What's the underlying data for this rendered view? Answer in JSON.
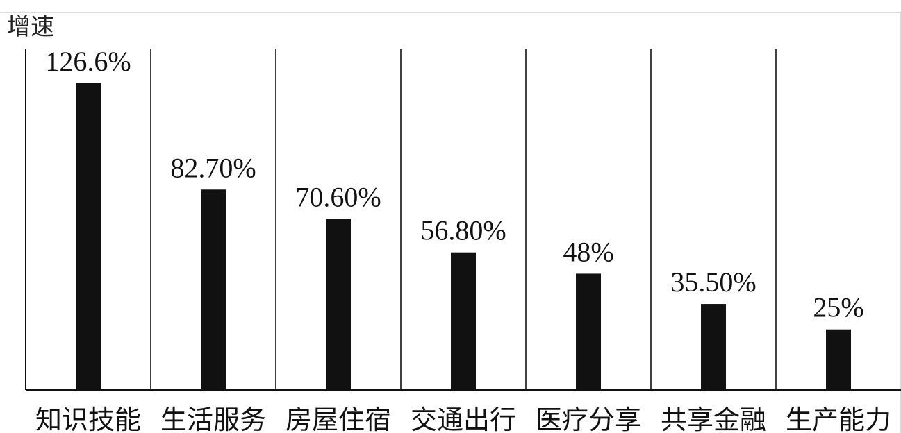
{
  "chart_data": {
    "type": "bar",
    "ylabel": "增速",
    "categories": [
      "知识技能",
      "生活服务",
      "房屋住宿",
      "交通出行",
      "医疗分享",
      "共享金融",
      "生产能力"
    ],
    "values": [
      126.6,
      82.7,
      70.6,
      56.8,
      48,
      35.5,
      25
    ],
    "value_labels": [
      "126.6%",
      "82.70%",
      "70.60%",
      "56.80%",
      "48%",
      "35.50%",
      "25%"
    ],
    "ylim": [
      0,
      140
    ],
    "grid": "vertical separators between categories",
    "bar_color": "#111111"
  }
}
